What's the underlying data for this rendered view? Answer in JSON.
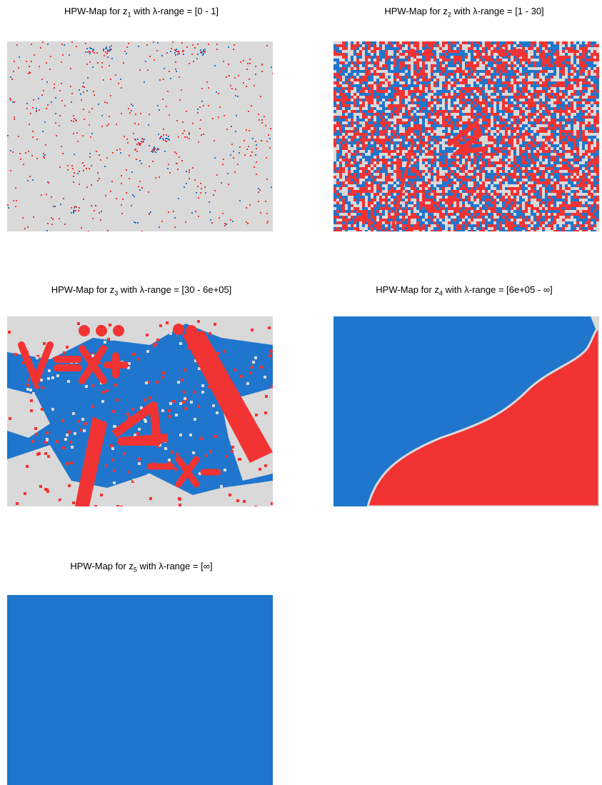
{
  "figure": {
    "panels": [
      {
        "id": "z1",
        "title_prefix": "HPW-Map for z",
        "subscript": "1",
        "title_suffix": " with λ-range = [0 - 1]",
        "pattern": "sparse"
      },
      {
        "id": "z2",
        "title_prefix": "HPW-Map for z",
        "subscript": "2",
        "title_suffix": " with λ-range = [1 - 30]",
        "pattern": "dense"
      },
      {
        "id": "z3",
        "title_prefix": "HPW-Map for z",
        "subscript": "3",
        "title_suffix": " with λ-range = [30 - 6e+05]",
        "pattern": "blobs"
      },
      {
        "id": "z4",
        "title_prefix": "HPW-Map for z",
        "subscript": "4",
        "title_suffix": " with λ-range = [6e+05 - ∞]",
        "pattern": "split"
      },
      {
        "id": "z5",
        "title_prefix": "HPW-Map for z",
        "subscript": "5",
        "title_suffix": " with λ-range = [∞]",
        "pattern": "solid"
      }
    ]
  },
  "colors": {
    "red": "#f23333",
    "blue": "#1f76cc",
    "gray": "#d9d9d9"
  },
  "chart_data": {
    "type": "heatmap",
    "category_colors": [
      "#f23333",
      "#1f76cc",
      "#d9d9d9"
    ],
    "panels": [
      "z1",
      "z2",
      "z3",
      "z4",
      "z5"
    ]
  }
}
